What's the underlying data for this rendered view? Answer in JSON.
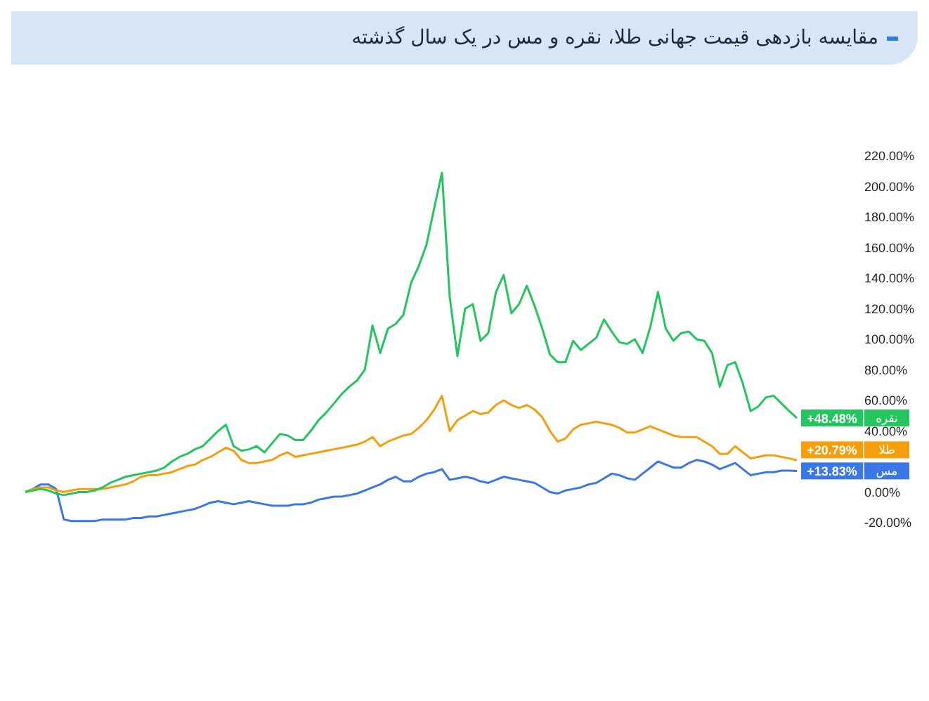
{
  "chart_data": {
    "type": "line",
    "title": "مقایسه بازدهی قیمت جهانی طلا، نقره و مس در یک سال گذشته",
    "categories": [
      null,
      null,
      null,
      null,
      null,
      null,
      null,
      null,
      null,
      null,
      null,
      null,
      null,
      null,
      null,
      null,
      null,
      null,
      null,
      null,
      null,
      null,
      null,
      null,
      null,
      null,
      null,
      null,
      null,
      null,
      null,
      null,
      null,
      null,
      null,
      null,
      null,
      null,
      null,
      null,
      null,
      null,
      null,
      null,
      null,
      null,
      null,
      null,
      null,
      null,
      null,
      null,
      null,
      null,
      null,
      null,
      null,
      null,
      null,
      null,
      null,
      null,
      null,
      null,
      null,
      null,
      null,
      null,
      null,
      null,
      null,
      null,
      null,
      null,
      null,
      null,
      null,
      null,
      null,
      null,
      null,
      null,
      null,
      null,
      null,
      null,
      null,
      null,
      null,
      null,
      null,
      null,
      null,
      null,
      null,
      null,
      null,
      null,
      null,
      null,
      null
    ],
    "ylim": [
      -20,
      220
    ],
    "legend": "right",
    "marker": "none",
    "line_style": "solid",
    "yticks": [
      {
        "value": -20,
        "label": "-20.00%"
      },
      {
        "value": 0,
        "label": "0.00%"
      },
      {
        "value": 40,
        "label": "40.00%"
      },
      {
        "value": 60,
        "label": "60.00%"
      },
      {
        "value": 80,
        "label": "80.00%"
      },
      {
        "value": 100,
        "label": "100.00%"
      },
      {
        "value": 120,
        "label": "120.00%"
      },
      {
        "value": 140,
        "label": "140.00%"
      },
      {
        "value": 160,
        "label": "160.00%"
      },
      {
        "value": 180,
        "label": "180.00%"
      },
      {
        "value": 200,
        "label": "200.00%"
      },
      {
        "value": 220,
        "label": "220.00%"
      }
    ],
    "series": [
      {
        "name": "نقره",
        "color": "#22c55e",
        "values": [
          0,
          1,
          2,
          1,
          -1,
          -2,
          -1,
          0,
          0,
          1,
          3,
          6,
          8,
          10,
          11,
          12,
          13,
          14,
          16,
          20,
          23,
          25,
          28,
          30,
          35,
          40,
          44,
          30,
          27,
          28,
          30,
          26,
          32,
          38,
          37,
          34,
          34,
          40,
          47,
          52,
          58,
          64,
          69,
          73,
          80,
          109,
          91,
          107,
          110,
          116,
          137,
          148,
          162,
          186,
          209,
          128,
          89,
          120,
          123,
          99,
          104,
          131,
          142,
          117,
          123,
          135,
          122,
          107,
          90,
          85,
          85,
          99,
          93,
          97,
          101,
          113,
          105,
          98,
          97,
          100,
          91,
          108,
          131,
          107,
          99,
          104,
          105,
          100,
          99,
          91,
          69,
          83,
          85,
          71,
          53,
          56,
          62,
          63,
          58,
          53,
          48.48
        ],
        "value_labels": [
          null,
          null,
          null,
          null,
          null,
          null,
          null,
          null,
          null,
          null,
          null,
          null,
          null,
          null,
          null,
          null,
          null,
          null,
          null,
          null,
          null,
          null,
          null,
          null,
          null,
          null,
          null,
          null,
          null,
          null,
          null,
          null,
          null,
          null,
          null,
          null,
          null,
          null,
          null,
          null,
          null,
          null,
          null,
          null,
          null,
          null,
          null,
          null,
          null,
          null,
          null,
          null,
          null,
          null,
          null,
          null,
          null,
          null,
          null,
          null,
          null,
          null,
          null,
          null,
          null,
          null,
          null,
          null,
          null,
          null,
          null,
          null,
          null,
          null,
          null,
          null,
          null,
          null,
          null,
          null,
          null,
          null,
          null,
          null,
          null,
          null,
          null,
          null,
          null,
          null,
          null,
          null,
          null,
          null,
          null,
          null,
          null,
          null,
          null,
          null,
          "+48.48%"
        ]
      },
      {
        "name": "طلا",
        "color": "#f59e0b",
        "values": [
          0,
          2,
          3,
          3,
          1,
          0,
          1,
          2,
          2,
          2,
          2,
          3,
          4,
          5,
          7,
          10,
          11,
          11,
          12,
          13,
          15,
          17,
          18,
          21,
          23,
          26,
          29,
          27,
          21,
          19,
          19,
          20,
          21,
          24,
          26,
          23,
          24,
          25,
          26,
          27,
          28,
          29,
          30,
          31,
          33,
          36,
          30,
          33,
          35,
          37,
          38,
          42,
          47,
          54,
          63,
          40,
          47,
          50,
          53,
          51,
          52,
          57,
          60,
          57,
          55,
          57,
          54,
          49,
          40,
          33,
          35,
          41,
          44,
          45,
          46,
          45,
          44,
          42,
          39,
          39,
          41,
          43,
          41,
          39,
          37,
          36,
          36,
          36,
          33,
          30,
          25,
          25,
          30,
          26,
          22,
          23,
          24,
          24,
          23,
          22,
          20.79
        ],
        "value_labels": [
          null,
          null,
          null,
          null,
          null,
          null,
          null,
          null,
          null,
          null,
          null,
          null,
          null,
          null,
          null,
          null,
          null,
          null,
          null,
          null,
          null,
          null,
          null,
          null,
          null,
          null,
          null,
          null,
          null,
          null,
          null,
          null,
          null,
          null,
          null,
          null,
          null,
          null,
          null,
          null,
          null,
          null,
          null,
          null,
          null,
          null,
          null,
          null,
          null,
          null,
          null,
          null,
          null,
          null,
          null,
          null,
          null,
          null,
          null,
          null,
          null,
          null,
          null,
          null,
          null,
          null,
          null,
          null,
          null,
          null,
          null,
          null,
          null,
          null,
          null,
          null,
          null,
          null,
          null,
          null,
          null,
          null,
          null,
          null,
          null,
          null,
          null,
          null,
          null,
          null,
          null,
          null,
          null,
          null,
          null,
          null,
          null,
          null,
          null,
          null,
          "+20.79%"
        ]
      },
      {
        "name": "مس",
        "color": "#3b78e7",
        "values": [
          0,
          2,
          5,
          5,
          2,
          -18,
          -19,
          -19,
          -19,
          -19,
          -18,
          -18,
          -18,
          -18,
          -17,
          -17,
          -16,
          -16,
          -15,
          -14,
          -13,
          -12,
          -11,
          -9,
          -7,
          -6,
          -7,
          -8,
          -7,
          -6,
          -7,
          -8,
          -9,
          -9,
          -9,
          -8,
          -8,
          -7,
          -5,
          -4,
          -3,
          -3,
          -2,
          -1,
          1,
          3,
          5,
          8,
          10,
          7,
          7,
          10,
          12,
          13,
          15,
          8,
          9,
          10,
          9,
          7,
          6,
          8,
          10,
          9,
          8,
          7,
          6,
          3,
          0,
          -1,
          1,
          2,
          3,
          5,
          6,
          9,
          12,
          11,
          9,
          8,
          12,
          16,
          20,
          18,
          16,
          16,
          19,
          21,
          20,
          18,
          15,
          17,
          19,
          15,
          11,
          12,
          13,
          13,
          14,
          14,
          13.83
        ],
        "value_labels": [
          null,
          null,
          null,
          null,
          null,
          null,
          null,
          null,
          null,
          null,
          null,
          null,
          null,
          null,
          null,
          null,
          null,
          null,
          null,
          null,
          null,
          null,
          null,
          null,
          null,
          null,
          null,
          null,
          null,
          null,
          null,
          null,
          null,
          null,
          null,
          null,
          null,
          null,
          null,
          null,
          null,
          null,
          null,
          null,
          null,
          null,
          null,
          null,
          null,
          null,
          null,
          null,
          null,
          null,
          null,
          null,
          null,
          null,
          null,
          null,
          null,
          null,
          null,
          null,
          null,
          null,
          null,
          null,
          null,
          null,
          null,
          null,
          null,
          null,
          null,
          null,
          null,
          null,
          null,
          null,
          null,
          null,
          null,
          null,
          null,
          null,
          null,
          null,
          null,
          null,
          null,
          null,
          null,
          null,
          null,
          null,
          null,
          null,
          null,
          null,
          "+13.83%"
        ]
      }
    ]
  }
}
